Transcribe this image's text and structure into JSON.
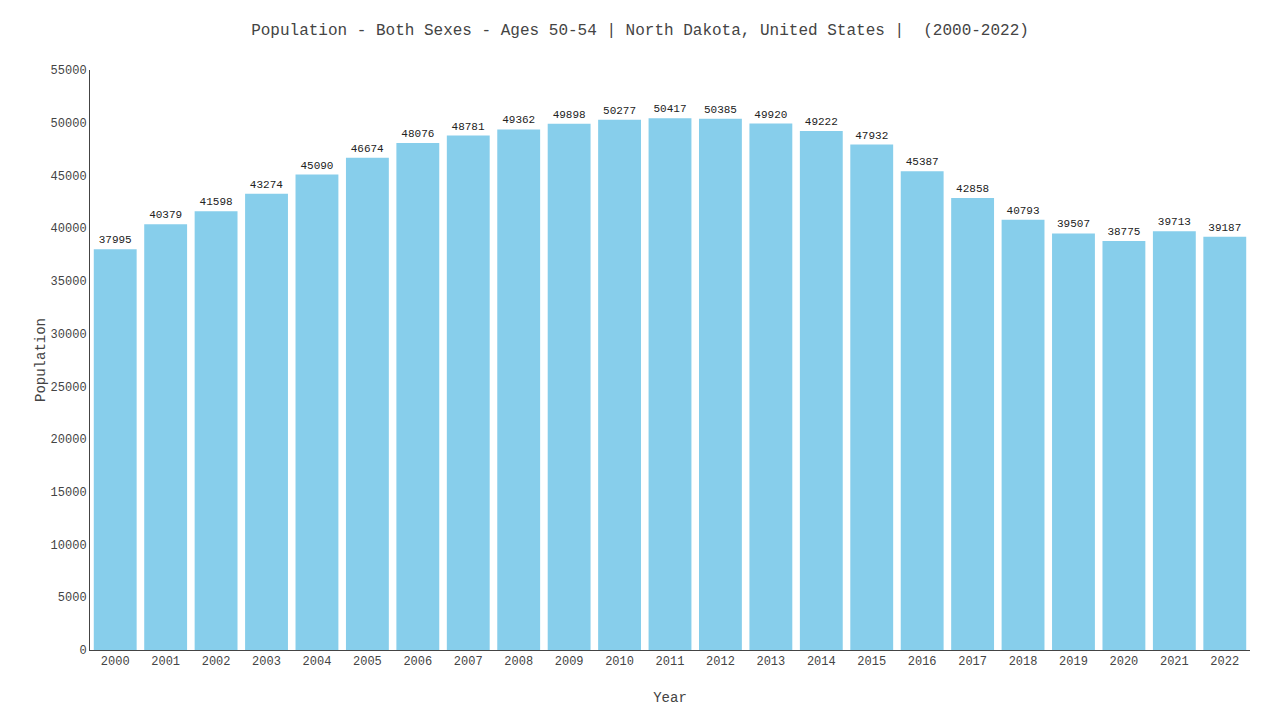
{
  "chart_data": {
    "type": "bar",
    "title": "Population - Both Sexes - Ages 50-54 | North Dakota, United States |  (2000-2022)",
    "x_label": "Year",
    "y_label": "Population",
    "categories": [
      "2000",
      "2001",
      "2002",
      "2003",
      "2004",
      "2005",
      "2006",
      "2007",
      "2008",
      "2009",
      "2010",
      "2011",
      "2012",
      "2013",
      "2014",
      "2015",
      "2016",
      "2017",
      "2018",
      "2019",
      "2020",
      "2021",
      "2022"
    ],
    "values": [
      37995,
      40379,
      41598,
      43274,
      45090,
      46674,
      48076,
      48781,
      49362,
      49898,
      50277,
      50417,
      50385,
      49920,
      49222,
      47932,
      45387,
      42858,
      40793,
      39507,
      38775,
      39713,
      39187
    ],
    "color": "#87ceeb",
    "ylim": [
      0,
      55000
    ],
    "yticks": [
      0,
      5000,
      10000,
      15000,
      20000,
      25000,
      30000,
      35000,
      40000,
      45000,
      50000,
      55000
    ],
    "grid": false,
    "data_labels": true
  }
}
